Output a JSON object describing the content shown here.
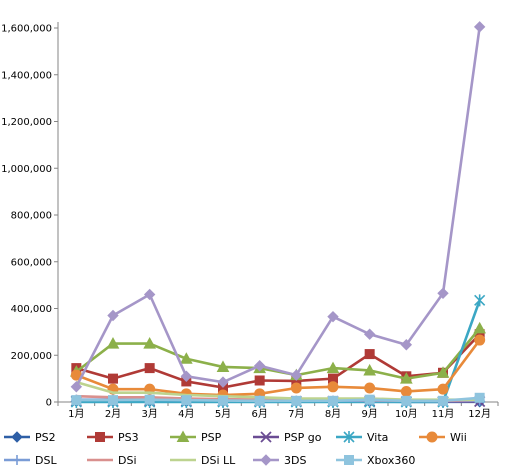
{
  "chart_data": {
    "type": "line",
    "title": "",
    "xlabel": "",
    "ylabel": "",
    "categories": [
      "1月",
      "2月",
      "3月",
      "4月",
      "5月",
      "6月",
      "7月",
      "8月",
      "9月",
      "10月",
      "11月",
      "12月"
    ],
    "ylim": [
      0,
      1600000
    ],
    "yticks": [
      0,
      200000,
      400000,
      600000,
      800000,
      1000000,
      1200000,
      1400000,
      1600000
    ],
    "grid": false,
    "legend": "bottom",
    "series": [
      {
        "name": "PS2",
        "color": "#2E5FA6",
        "marker": "diamond",
        "values": [
          3000,
          3000,
          3000,
          2000,
          2000,
          2000,
          2000,
          2000,
          2000,
          1000,
          1000,
          1000
        ]
      },
      {
        "name": "PS3",
        "color": "#B03A36",
        "marker": "square",
        "values": [
          145000,
          100000,
          145000,
          88000,
          62000,
          92000,
          90000,
          100000,
          205000,
          110000,
          125000,
          290000
        ]
      },
      {
        "name": "PSP",
        "color": "#8CB04A",
        "marker": "triangle",
        "values": [
          130000,
          250000,
          250000,
          185000,
          150000,
          145000,
          115000,
          145000,
          135000,
          100000,
          125000,
          315000
        ]
      },
      {
        "name": "PSP go",
        "color": "#6A4C93",
        "marker": "x",
        "values": [
          5000,
          5000,
          5000,
          4000,
          4000,
          3000,
          3000,
          3000,
          3000,
          2000,
          2000,
          2000
        ]
      },
      {
        "name": "Vita",
        "color": "#3BA7C4",
        "marker": "star",
        "values": [
          0,
          0,
          0,
          0,
          0,
          0,
          0,
          0,
          0,
          0,
          0,
          435000
        ]
      },
      {
        "name": "Wii",
        "color": "#E88A3A",
        "marker": "circle",
        "values": [
          115000,
          55000,
          55000,
          35000,
          30000,
          35000,
          60000,
          65000,
          60000,
          45000,
          55000,
          265000
        ]
      },
      {
        "name": "DSL",
        "color": "#7A9CD6",
        "marker": "plus",
        "values": [
          10000,
          10000,
          10000,
          8000,
          8000,
          7000,
          6000,
          6000,
          5000,
          5000,
          4000,
          5000
        ]
      },
      {
        "name": "DSi",
        "color": "#D9908E",
        "marker": "none",
        "values": [
          25000,
          20000,
          20000,
          15000,
          12000,
          10000,
          10000,
          10000,
          8000,
          6000,
          5000,
          10000
        ]
      },
      {
        "name": "DSi LL",
        "color": "#BDD38F",
        "marker": "none",
        "values": [
          85000,
          40000,
          40000,
          30000,
          25000,
          20000,
          15000,
          15000,
          15000,
          10000,
          10000,
          10000
        ]
      },
      {
        "name": "3DS",
        "color": "#A596C8",
        "marker": "diamond",
        "values": [
          65000,
          370000,
          460000,
          110000,
          85000,
          155000,
          115000,
          365000,
          290000,
          245000,
          465000,
          1605000
        ]
      },
      {
        "name": "Xbox360",
        "color": "#8FC4DE",
        "marker": "square",
        "values": [
          8000,
          8000,
          10000,
          8000,
          6000,
          5000,
          5000,
          5000,
          10000,
          5000,
          5000,
          18000
        ]
      }
    ]
  }
}
